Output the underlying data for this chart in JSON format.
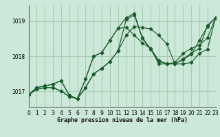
{
  "xlabel": "Graphe pression niveau de la mer (hPa)",
  "bg_color": "#cce8d8",
  "grid_color": "#aaccb8",
  "line_color": "#1a5c2a",
  "x_min": 0,
  "x_max": 23,
  "y_min": 1016.55,
  "y_max": 1019.45,
  "yticks": [
    1017,
    1018,
    1019
  ],
  "xticks": [
    0,
    1,
    2,
    3,
    4,
    5,
    6,
    7,
    8,
    9,
    10,
    11,
    12,
    13,
    14,
    15,
    16,
    17,
    18,
    19,
    20,
    21,
    22,
    23
  ],
  "series": [
    [
      1016.9,
      1017.05,
      1017.1,
      1017.1,
      1017.0,
      1016.85,
      1016.78,
      1017.1,
      1017.5,
      1017.65,
      1017.85,
      1018.15,
      1019.05,
      1019.18,
      1018.5,
      1018.2,
      1017.85,
      1017.78,
      1017.78,
      1017.9,
      1018.05,
      1018.45,
      1018.85,
      1019.1
    ],
    [
      1016.9,
      1017.05,
      1017.1,
      1017.1,
      1017.0,
      1016.85,
      1016.78,
      1017.1,
      1017.5,
      1017.65,
      1017.85,
      1018.15,
      1018.6,
      1018.85,
      1018.82,
      1018.78,
      1018.6,
      1018.35,
      1017.78,
      1017.78,
      1017.82,
      1018.08,
      1018.2,
      1019.1
    ],
    [
      1016.9,
      1017.1,
      1017.15,
      1017.2,
      1017.3,
      1016.88,
      1016.78,
      1017.35,
      1018.0,
      1018.1,
      1018.45,
      1018.8,
      1018.82,
      1018.6,
      1018.38,
      1018.22,
      1017.78,
      1017.78,
      1017.82,
      1018.08,
      1018.22,
      1018.32,
      1018.52,
      1019.1
    ],
    [
      1016.9,
      1017.1,
      1017.15,
      1017.2,
      1017.3,
      1016.88,
      1016.78,
      1017.35,
      1018.0,
      1018.1,
      1018.45,
      1018.8,
      1019.1,
      1019.22,
      1018.52,
      1018.22,
      1017.88,
      1017.78,
      1017.78,
      1017.92,
      1018.08,
      1018.22,
      1018.88,
      1019.1
    ]
  ]
}
